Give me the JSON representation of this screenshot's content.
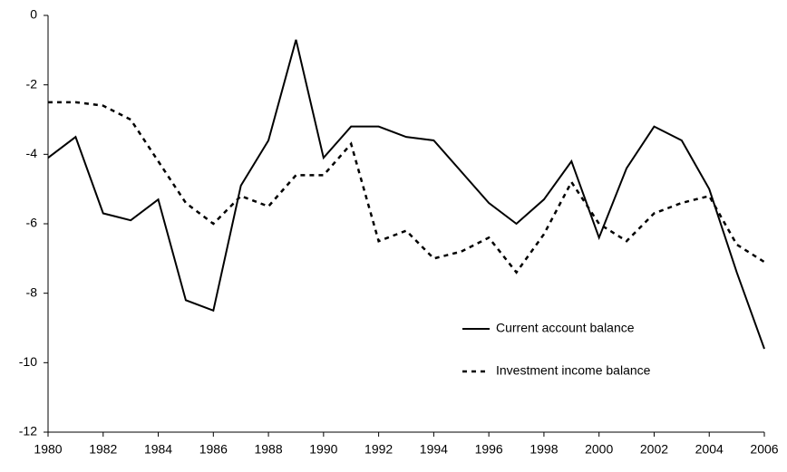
{
  "chart_data": {
    "type": "line",
    "x": [
      1980,
      1981,
      1982,
      1983,
      1984,
      1985,
      1986,
      1987,
      1988,
      1989,
      1990,
      1991,
      1992,
      1993,
      1994,
      1995,
      1996,
      1997,
      1998,
      1999,
      2000,
      2001,
      2002,
      2003,
      2004,
      2005,
      2006
    ],
    "series": [
      {
        "name": "Current account balance",
        "color": "#000000",
        "dash": "solid",
        "values": [
          -4.1,
          -3.5,
          -5.7,
          -5.9,
          -5.3,
          -8.2,
          -8.5,
          -4.9,
          -3.6,
          -0.7,
          -4.1,
          -3.2,
          -3.2,
          -3.5,
          -3.6,
          -4.5,
          -5.4,
          -6.0,
          -5.3,
          -4.2,
          -6.4,
          -4.4,
          -3.2,
          -3.6,
          -5.0,
          -7.4,
          -9.6
        ]
      },
      {
        "name": "Investment income balance",
        "color": "#000000",
        "dash": "dotted",
        "values": [
          -2.5,
          -2.5,
          -2.6,
          -3.0,
          -4.2,
          -5.4,
          -6.0,
          -5.2,
          -5.5,
          -4.6,
          -4.6,
          -3.7,
          -6.5,
          -6.2,
          -7.0,
          -6.8,
          -6.4,
          -7.4,
          -6.3,
          -4.8,
          -6.0,
          -6.5,
          -5.7,
          -5.4,
          -5.2,
          -6.6,
          -7.1
        ]
      }
    ],
    "xlim": [
      1980,
      2006
    ],
    "xticks": [
      1980,
      1982,
      1984,
      1986,
      1988,
      1990,
      1992,
      1994,
      1996,
      1998,
      2000,
      2002,
      2004,
      2006
    ],
    "ylim": [
      -12,
      0
    ],
    "yticks": [
      -12,
      -10,
      -8,
      -6,
      -4,
      -2,
      0
    ],
    "grid": false,
    "legend": "lower right"
  }
}
